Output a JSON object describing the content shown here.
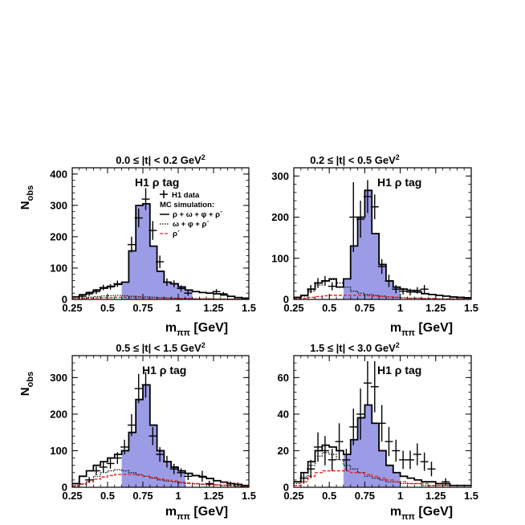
{
  "chart_data": [
    {
      "type": "bar",
      "title_prefix": "0.0 ≤ |t| < 0.2 GeV",
      "title_exp": "2",
      "tag": "H1 ρ tag",
      "ylabel": "N",
      "ylabel_sub": "obs",
      "xlabel": "m",
      "xlabel_sub": "ππ",
      "xlabel_unit": " [GeV]",
      "xlim": [
        0.25,
        1.5
      ],
      "ylim": [
        0,
        420
      ],
      "xticks": [
        "0.25",
        "0.5",
        "0.75",
        "1",
        "1.25",
        "1.5"
      ],
      "yticks": [
        0,
        100,
        200,
        300,
        400
      ],
      "legend": {
        "data_label": "H1 data",
        "mc_title": "MC simulation:",
        "total_label": "ρ + ω + φ + ρ´",
        "bkg_label": "ω + φ + ρ´",
        "rhoprime_label": "ρ´"
      },
      "fill_start": 0.6,
      "fill_end": 1.1,
      "bin_edges": [
        0.25,
        0.3,
        0.35,
        0.4,
        0.45,
        0.5,
        0.55,
        0.6,
        0.65,
        0.7,
        0.75,
        0.8,
        0.85,
        0.9,
        0.95,
        1.0,
        1.05,
        1.1,
        1.15,
        1.2,
        1.25,
        1.3,
        1.35,
        1.4,
        1.45,
        1.5
      ],
      "series": [
        {
          "name": "ρ + ω + φ + ρ´",
          "role": "total",
          "values": [
            8,
            15,
            22,
            30,
            36,
            42,
            48,
            55,
            155,
            300,
            305,
            170,
            90,
            55,
            50,
            40,
            30,
            25,
            22,
            20,
            18,
            14,
            10,
            6,
            4
          ]
        },
        {
          "name": "ω + φ + ρ´",
          "role": "background",
          "values": [
            3,
            5,
            7,
            9,
            11,
            12,
            13,
            12,
            10,
            9,
            8,
            7,
            6,
            5,
            4,
            3,
            3,
            2,
            2,
            2,
            1,
            1,
            1,
            1,
            1
          ]
        },
        {
          "name": "ρ´",
          "role": "rhoprime",
          "values": [
            2,
            3,
            4,
            5,
            6,
            6,
            7,
            7,
            7,
            7,
            6,
            6,
            5,
            5,
            4,
            3,
            3,
            2,
            2,
            2,
            1,
            1,
            1,
            1,
            1
          ]
        }
      ],
      "points": [
        {
          "x": 0.32,
          "y": 10,
          "err": 6
        },
        {
          "x": 0.37,
          "y": 18,
          "err": 7
        },
        {
          "x": 0.42,
          "y": 25,
          "err": 8
        },
        {
          "x": 0.47,
          "y": 38,
          "err": 9
        },
        {
          "x": 0.52,
          "y": 40,
          "err": 9
        },
        {
          "x": 0.57,
          "y": 50,
          "err": 10
        },
        {
          "x": 0.67,
          "y": 175,
          "err": 25
        },
        {
          "x": 0.72,
          "y": 260,
          "err": 30
        },
        {
          "x": 0.77,
          "y": 320,
          "err": 35
        },
        {
          "x": 0.82,
          "y": 220,
          "err": 30
        },
        {
          "x": 0.87,
          "y": 120,
          "err": 20
        },
        {
          "x": 0.92,
          "y": 55,
          "err": 12
        },
        {
          "x": 0.97,
          "y": 50,
          "err": 11
        },
        {
          "x": 1.02,
          "y": 35,
          "err": 10
        },
        {
          "x": 1.07,
          "y": 20,
          "err": 8
        },
        {
          "x": 1.27,
          "y": 25,
          "err": 8
        },
        {
          "x": 1.32,
          "y": 18,
          "err": 6
        }
      ]
    },
    {
      "type": "bar",
      "title_prefix": "0.2 ≤ |t| < 0.5 GeV",
      "title_exp": "2",
      "tag": "H1 ρ tag",
      "ylabel": "",
      "ylabel_sub": "",
      "xlabel": "m",
      "xlabel_sub": "ππ",
      "xlabel_unit": " [GeV]",
      "xlim": [
        0.25,
        1.5
      ],
      "ylim": [
        0,
        320
      ],
      "xticks": [
        "0.25",
        "0.5",
        "0.75",
        "1",
        "1.25",
        "1.5"
      ],
      "yticks": [
        0,
        100,
        200,
        300
      ],
      "fill_start": 0.6,
      "fill_end": 1.0,
      "bin_edges": [
        0.25,
        0.3,
        0.35,
        0.4,
        0.45,
        0.5,
        0.55,
        0.6,
        0.65,
        0.7,
        0.75,
        0.8,
        0.85,
        0.9,
        0.95,
        1.0,
        1.05,
        1.1,
        1.15,
        1.2,
        1.25,
        1.3,
        1.35,
        1.4,
        1.45,
        1.5
      ],
      "series": [
        {
          "name": "total",
          "role": "total",
          "values": [
            5,
            10,
            25,
            40,
            45,
            50,
            30,
            50,
            130,
            200,
            265,
            160,
            85,
            45,
            30,
            25,
            22,
            18,
            14,
            12,
            10,
            8,
            6,
            5,
            4
          ]
        },
        {
          "name": "bkg",
          "role": "background",
          "values": [
            3,
            8,
            20,
            35,
            45,
            48,
            40,
            30,
            20,
            15,
            12,
            10,
            8,
            6,
            5,
            4,
            3,
            3,
            2,
            2,
            1,
            1,
            1,
            1,
            1
          ]
        },
        {
          "name": "rhoprime",
          "role": "rhoprime",
          "values": [
            2,
            3,
            5,
            7,
            9,
            10,
            10,
            10,
            10,
            10,
            9,
            8,
            7,
            6,
            5,
            4,
            3,
            3,
            2,
            2,
            1,
            1,
            1,
            1,
            1
          ]
        }
      ],
      "points": [
        {
          "x": 0.37,
          "y": 25,
          "err": 10
        },
        {
          "x": 0.42,
          "y": 40,
          "err": 12
        },
        {
          "x": 0.47,
          "y": 45,
          "err": 12
        },
        {
          "x": 0.52,
          "y": 32,
          "err": 10
        },
        {
          "x": 0.67,
          "y": 200,
          "err": 85
        },
        {
          "x": 0.72,
          "y": 195,
          "err": 45
        },
        {
          "x": 0.77,
          "y": 250,
          "err": 40
        },
        {
          "x": 0.82,
          "y": 225,
          "err": 30
        },
        {
          "x": 0.87,
          "y": 80,
          "err": 18
        },
        {
          "x": 0.92,
          "y": 45,
          "err": 15
        },
        {
          "x": 0.97,
          "y": 25,
          "err": 10
        },
        {
          "x": 1.02,
          "y": 20,
          "err": 8
        },
        {
          "x": 1.07,
          "y": 18,
          "err": 8
        },
        {
          "x": 1.12,
          "y": 22,
          "err": 8
        },
        {
          "x": 1.17,
          "y": 25,
          "err": 10
        }
      ]
    },
    {
      "type": "bar",
      "title_prefix": "0.5 ≤ |t| < 1.5 GeV",
      "title_exp": "2",
      "tag": "H1 ρ tag",
      "ylabel": "N",
      "ylabel_sub": "obs",
      "xlabel": "m",
      "xlabel_sub": "ππ",
      "xlabel_unit": " [GeV]",
      "xlim": [
        0.25,
        1.5
      ],
      "ylim": [
        0,
        360
      ],
      "xticks": [
        "0.25",
        "0.5",
        "0.75",
        "1",
        "1.25",
        "1.5"
      ],
      "yticks": [
        0,
        100,
        200,
        300
      ],
      "fill_start": 0.6,
      "fill_end": 1.05,
      "bin_edges": [
        0.25,
        0.3,
        0.35,
        0.4,
        0.45,
        0.5,
        0.55,
        0.6,
        0.65,
        0.7,
        0.75,
        0.8,
        0.85,
        0.9,
        0.95,
        1.0,
        1.05,
        1.1,
        1.15,
        1.2,
        1.25,
        1.3,
        1.35,
        1.4,
        1.45,
        1.5
      ],
      "series": [
        {
          "name": "total",
          "role": "total",
          "values": [
            10,
            30,
            45,
            60,
            70,
            80,
            90,
            100,
            150,
            240,
            280,
            170,
            100,
            70,
            55,
            45,
            38,
            32,
            28,
            24,
            18,
            14,
            10,
            8,
            5
          ]
        },
        {
          "name": "bkg",
          "role": "background",
          "values": [
            5,
            10,
            20,
            30,
            40,
            45,
            48,
            45,
            40,
            35,
            30,
            25,
            20,
            17,
            15,
            12,
            10,
            9,
            8,
            7,
            6,
            5,
            4,
            3,
            2
          ]
        },
        {
          "name": "rhoprime",
          "role": "rhoprime",
          "values": [
            3,
            8,
            15,
            22,
            28,
            32,
            35,
            35,
            35,
            33,
            30,
            27,
            23,
            20,
            17,
            14,
            12,
            10,
            9,
            8,
            7,
            6,
            5,
            4,
            3
          ]
        }
      ],
      "points": [
        {
          "x": 0.37,
          "y": 20,
          "err": 8
        },
        {
          "x": 0.42,
          "y": 45,
          "err": 12
        },
        {
          "x": 0.47,
          "y": 55,
          "err": 14
        },
        {
          "x": 0.52,
          "y": 65,
          "err": 14
        },
        {
          "x": 0.57,
          "y": 80,
          "err": 16
        },
        {
          "x": 0.62,
          "y": 110,
          "err": 20
        },
        {
          "x": 0.67,
          "y": 170,
          "err": 30
        },
        {
          "x": 0.72,
          "y": 270,
          "err": 40
        },
        {
          "x": 0.77,
          "y": 280,
          "err": 35
        },
        {
          "x": 0.82,
          "y": 140,
          "err": 25
        },
        {
          "x": 0.87,
          "y": 90,
          "err": 20
        },
        {
          "x": 0.92,
          "y": 70,
          "err": 16
        },
        {
          "x": 0.97,
          "y": 50,
          "err": 14
        },
        {
          "x": 1.02,
          "y": 40,
          "err": 12
        },
        {
          "x": 1.07,
          "y": 30,
          "err": 10
        },
        {
          "x": 1.17,
          "y": 30,
          "err": 15
        },
        {
          "x": 1.22,
          "y": 10,
          "err": 8
        },
        {
          "x": 1.37,
          "y": 10,
          "err": 6
        },
        {
          "x": 1.42,
          "y": 8,
          "err": 5
        }
      ]
    },
    {
      "type": "bar",
      "title_prefix": "1.5 ≤ |t| < 3.0 GeV",
      "title_exp": "2",
      "tag": "H1 ρ tag",
      "ylabel": "",
      "ylabel_sub": "",
      "xlabel": "m",
      "xlabel_sub": "ππ",
      "xlabel_unit": " [GeV]",
      "xlim": [
        0.25,
        1.5
      ],
      "ylim": [
        0,
        72
      ],
      "xticks": [
        "0.25",
        "0.5",
        "0.75",
        "1",
        "1.25",
        "1.5"
      ],
      "yticks": [
        0,
        20,
        40,
        60
      ],
      "fill_start": 0.6,
      "fill_end": 1.0,
      "bin_edges": [
        0.25,
        0.3,
        0.35,
        0.4,
        0.45,
        0.5,
        0.55,
        0.6,
        0.65,
        0.7,
        0.75,
        0.8,
        0.85,
        0.9,
        0.95,
        1.0,
        1.05,
        1.1,
        1.15,
        1.2,
        1.25,
        1.3,
        1.35,
        1.4,
        1.45,
        1.5
      ],
      "series": [
        {
          "name": "total",
          "role": "total",
          "values": [
            3,
            8,
            14,
            20,
            23,
            22,
            20,
            18,
            26,
            38,
            45,
            35,
            20,
            12,
            8,
            6,
            5,
            4,
            3,
            3,
            2,
            2,
            1,
            1,
            1
          ]
        },
        {
          "name": "bkg",
          "role": "background",
          "values": [
            2,
            6,
            12,
            17,
            19,
            18,
            15,
            12,
            10,
            8,
            6,
            5,
            4,
            3,
            3,
            2,
            2,
            2,
            1,
            1,
            1,
            1,
            1,
            1,
            1
          ]
        },
        {
          "name": "rhoprime",
          "role": "rhoprime",
          "values": [
            1,
            3,
            6,
            8,
            9,
            9,
            9,
            9,
            8,
            8,
            7,
            6,
            5,
            4,
            3,
            3,
            2,
            2,
            2,
            1,
            1,
            1,
            1,
            1,
            1
          ]
        }
      ],
      "points": [
        {
          "x": 0.32,
          "y": 5,
          "err": 3
        },
        {
          "x": 0.37,
          "y": 10,
          "err": 5
        },
        {
          "x": 0.42,
          "y": 22,
          "err": 8
        },
        {
          "x": 0.47,
          "y": 20,
          "err": 8
        },
        {
          "x": 0.52,
          "y": 15,
          "err": 6
        },
        {
          "x": 0.57,
          "y": 25,
          "err": 10
        },
        {
          "x": 0.62,
          "y": 15,
          "err": 6
        },
        {
          "x": 0.67,
          "y": 33,
          "err": 10
        },
        {
          "x": 0.72,
          "y": 40,
          "err": 14
        },
        {
          "x": 0.77,
          "y": 57,
          "err": 12
        },
        {
          "x": 0.82,
          "y": 55,
          "err": 14
        },
        {
          "x": 0.87,
          "y": 35,
          "err": 10
        },
        {
          "x": 0.92,
          "y": 25,
          "err": 8
        },
        {
          "x": 0.97,
          "y": 20,
          "err": 6
        },
        {
          "x": 1.02,
          "y": 15,
          "err": 5
        },
        {
          "x": 1.07,
          "y": 15,
          "err": 5
        },
        {
          "x": 1.12,
          "y": 18,
          "err": 6
        },
        {
          "x": 1.17,
          "y": 14,
          "err": 5
        },
        {
          "x": 1.22,
          "y": 10,
          "err": 4
        },
        {
          "x": 1.32,
          "y": 3,
          "err": 2
        }
      ]
    }
  ]
}
